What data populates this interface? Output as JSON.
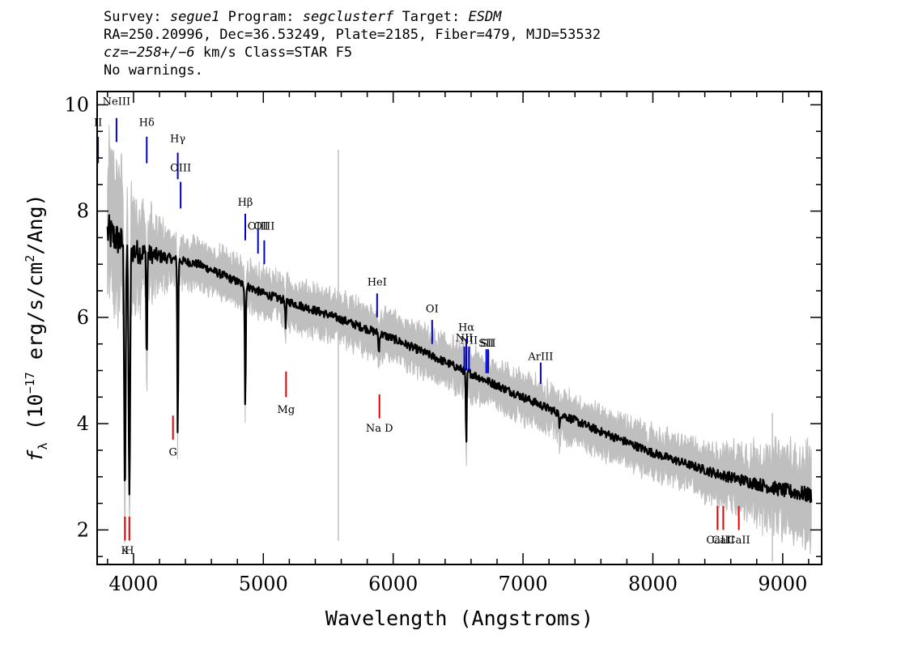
{
  "header": {
    "survey_label": "Survey:",
    "survey": "segue1",
    "program_label": "Program:",
    "program": "segclusterf",
    "target_label": "Target:",
    "target": "ESDM",
    "line2": "RA=250.20996, Dec=36.53249, Plate=2185, Fiber=479, MJD=53532",
    "cz": "cz=−258+/−6",
    "cz_rest": "km/s Class=STAR F5",
    "warnings": "No warnings."
  },
  "colors": {
    "flux": "#000000",
    "noise": "#bfbfbf",
    "emission": "#0000cc",
    "absorption": "#dd0000"
  },
  "chart_data": {
    "type": "line",
    "xlabel": "Wavelength (Angstroms)",
    "ylabel_prefix": "f",
    "ylabel_sub": "λ",
    "ylabel_main": " (10",
    "ylabel_exp": "−17",
    "ylabel_tail": " erg/s/cm",
    "ylabel_exp2": "2",
    "ylabel_end": "/Ang)",
    "xlim": [
      3720,
      9300
    ],
    "ylim": [
      1.35,
      10.25
    ],
    "xticks": [
      4000,
      5000,
      6000,
      7000,
      8000,
      9000
    ],
    "yticks": [
      2,
      4,
      6,
      8,
      10
    ],
    "continuum": [
      [
        3800,
        7.6
      ],
      [
        4000,
        7.25
      ],
      [
        4500,
        7.0
      ],
      [
        5000,
        6.45
      ],
      [
        5500,
        6.05
      ],
      [
        6000,
        5.6
      ],
      [
        6500,
        5.05
      ],
      [
        7000,
        4.5
      ],
      [
        7500,
        3.95
      ],
      [
        8000,
        3.45
      ],
      [
        8500,
        3.05
      ],
      [
        9000,
        2.75
      ],
      [
        9220,
        2.65
      ]
    ],
    "absorption_features": [
      {
        "x": 3934,
        "y": 2.75
      },
      {
        "x": 3968,
        "y": 2.5
      },
      {
        "x": 4102,
        "y": 5.1
      },
      {
        "x": 4341,
        "y": 3.75
      },
      {
        "x": 4861,
        "y": 4.3
      },
      {
        "x": 5172,
        "y": 5.8
      },
      {
        "x": 5890,
        "y": 5.3
      },
      {
        "x": 6563,
        "y": 3.55
      },
      {
        "x": 7280,
        "y": 3.9
      }
    ],
    "emission_lines": [
      {
        "label": "II",
        "x": 3727,
        "y1": 8.9,
        "y2": 9.4,
        "ly": 9.6
      },
      {
        "label": "NeIII",
        "x": 3869,
        "y1": 9.3,
        "y2": 9.75,
        "ly": 10.0
      },
      {
        "label": "Hδ",
        "x": 4102,
        "y1": 8.9,
        "y2": 9.4,
        "ly": 9.6
      },
      {
        "label": "Hγ",
        "x": 4341,
        "y1": 8.6,
        "y2": 9.1,
        "ly": 9.3
      },
      {
        "label": "OIII",
        "x": 4363,
        "y1": 8.05,
        "y2": 8.55,
        "ly": 8.75
      },
      {
        "label": "Hβ",
        "x": 4861,
        "y1": 7.45,
        "y2": 7.95,
        "ly": 8.1
      },
      {
        "label": "OIII",
        "x": 4959,
        "y1": 7.2,
        "y2": 7.65,
        "ly": 7.65
      },
      {
        "label": "OIII",
        "x": 5007,
        "y1": 7.0,
        "y2": 7.45,
        "ly": 7.65
      },
      {
        "label": "HeI",
        "x": 5876,
        "y1": 6.0,
        "y2": 6.45,
        "ly": 6.6
      },
      {
        "label": "OI",
        "x": 6300,
        "y1": 5.5,
        "y2": 5.95,
        "ly": 6.1
      },
      {
        "label": "NII",
        "x": 6548,
        "y1": 5.0,
        "y2": 5.45,
        "ly": 5.55
      },
      {
        "label": "Hα",
        "x": 6563,
        "y1": 5.0,
        "y2": 5.6,
        "ly": 5.75
      },
      {
        "label": "NII",
        "x": 6584,
        "y1": 5.0,
        "y2": 5.45,
        "ly": 5.5
      },
      {
        "label": "SII",
        "x": 6717,
        "y1": 4.95,
        "y2": 5.4,
        "ly": 5.45
      },
      {
        "label": "SII",
        "x": 6731,
        "y1": 4.95,
        "y2": 5.4,
        "ly": 5.45
      },
      {
        "label": "ArIII",
        "x": 7136,
        "y1": 4.75,
        "y2": 5.15,
        "ly": 5.2
      }
    ],
    "absorption_lines": [
      {
        "label": "K",
        "x": 3934,
        "y1": 1.8,
        "y2": 2.25,
        "ly": 1.55
      },
      {
        "label": "H",
        "x": 3968,
        "y1": 1.8,
        "y2": 2.25,
        "ly": 1.55
      },
      {
        "label": "G",
        "x": 4304,
        "y1": 3.7,
        "y2": 4.15,
        "ly": 3.4
      },
      {
        "label": "Mg",
        "x": 5175,
        "y1": 4.5,
        "y2": 4.98,
        "ly": 4.2
      },
      {
        "label": "Na D",
        "x": 5894,
        "y1": 4.1,
        "y2": 4.55,
        "ly": 3.85
      },
      {
        "label": "CaII",
        "x": 8498,
        "y1": 2.0,
        "y2": 2.45,
        "ly": 1.75
      },
      {
        "label": "CaII",
        "x": 8542,
        "y1": 2.0,
        "y2": 2.45,
        "ly": 1.75
      },
      {
        "label": "CaII",
        "x": 8662,
        "y1": 2.0,
        "y2": 2.45,
        "ly": 1.75
      }
    ]
  }
}
